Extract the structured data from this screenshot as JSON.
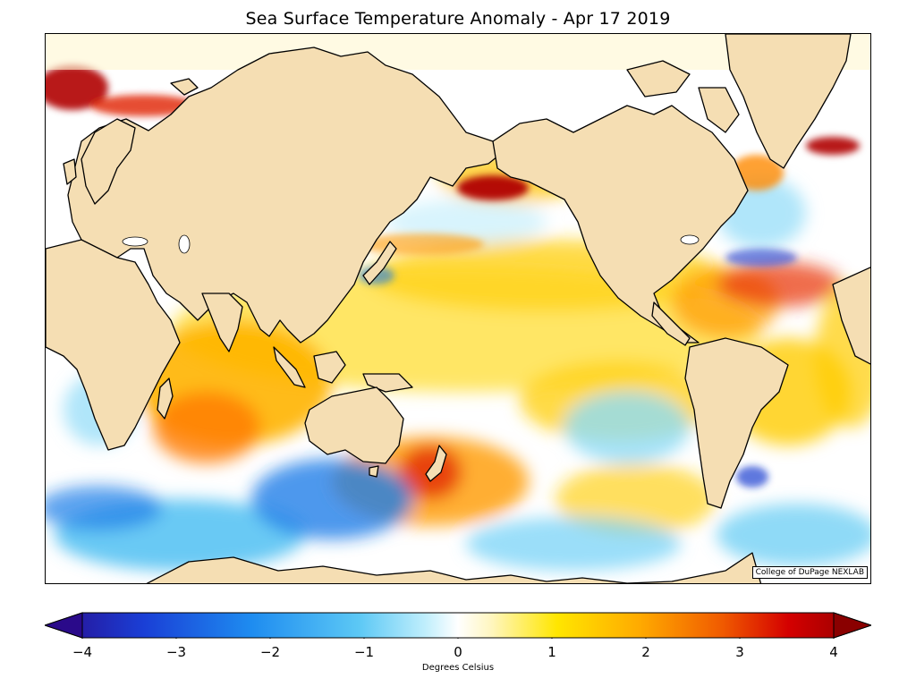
{
  "title": "Sea Surface Temperature Anomaly - Apr 17 2019",
  "credit": "College of DuPage NEXLAB",
  "colorbar": {
    "label": "Degrees Celsius",
    "min": -4,
    "max": 4,
    "ticks": [
      "−4",
      "−3",
      "−2",
      "−1",
      "0",
      "1",
      "2",
      "3",
      "4"
    ],
    "tick_values": [
      -4,
      -3,
      -2,
      -1,
      0,
      1,
      2,
      3,
      4
    ],
    "colors": [
      "#2a0a8a",
      "#1a3fd6",
      "#1e8cf0",
      "#5cc8f5",
      "#bfeefc",
      "#ffffff",
      "#fff6c0",
      "#ffe600",
      "#ffaa00",
      "#f05a00",
      "#d40000",
      "#8a0000"
    ]
  },
  "land_color": "#f5deb3",
  "ocean_colors": {
    "neutral": "#ffffff",
    "warm_light": "#fff2b0",
    "warm": "#ffd21a",
    "warmer": "#ff9a00",
    "hot": "#e02000",
    "very_hot": "#9a0000",
    "cool_light": "#c8f0fc",
    "cool": "#5fcaf3",
    "cold": "#1f7ee8",
    "very_cold": "#1a3fd0"
  }
}
